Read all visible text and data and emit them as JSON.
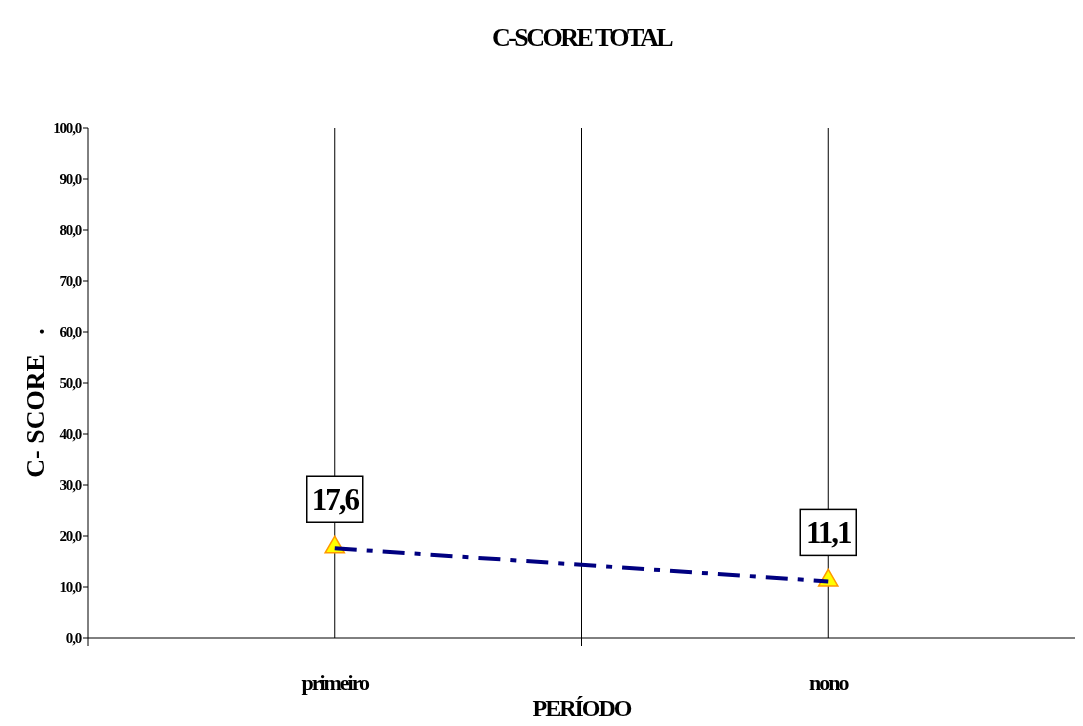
{
  "chart_data": {
    "type": "line",
    "title": "C-SCORE TOTAL",
    "xlabel": "PERÍODO",
    "ylabel": "C- SCORE   .",
    "categories": [
      "primeiro",
      "nono"
    ],
    "series": [
      {
        "color": "#000080",
        "values": [
          17.6,
          11.1
        ],
        "value_labels": [
          "17,6",
          "11,1"
        ]
      }
    ],
    "ylim": [
      0,
      100
    ],
    "yticks": [
      {
        "value": 0,
        "label": "0,0"
      },
      {
        "value": 10,
        "label": "10,0"
      },
      {
        "value": 20,
        "label": "20,0"
      },
      {
        "value": 30,
        "label": "30,0"
      },
      {
        "value": 40,
        "label": "40,0"
      },
      {
        "value": 50,
        "label": "50,0"
      },
      {
        "value": 60,
        "label": "60,0"
      },
      {
        "value": 70,
        "label": "70,0"
      },
      {
        "value": 80,
        "label": "80,0"
      },
      {
        "value": 90,
        "label": "90,0"
      },
      {
        "value": 100,
        "label": "100,0"
      }
    ],
    "grid": "x",
    "marker": "triangle",
    "line_style": "dashed"
  }
}
